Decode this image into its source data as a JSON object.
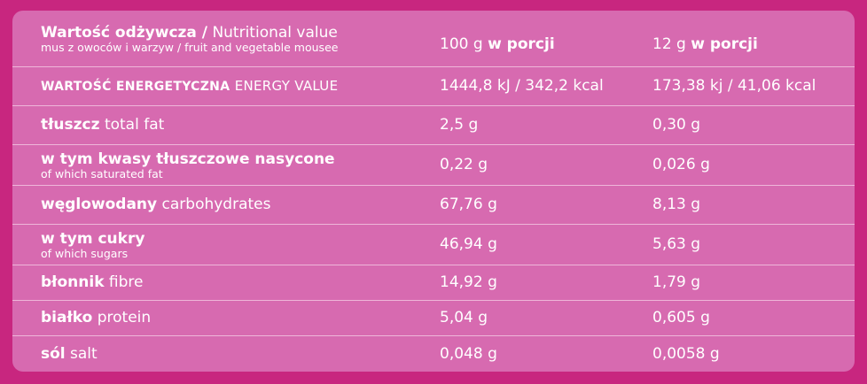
{
  "header": {
    "title_bold": "Wartość odżywcza /",
    "title_regular": "Nutritional value",
    "subtitle": "mus z owoców i warzyw / fruit and vegetable mousee",
    "col1_amount": "100 g",
    "col1_label": "w porcji",
    "col2_amount": "12 g",
    "col2_label": "w porcji"
  },
  "rows": [
    {
      "pl": "WARTOŚĆ ENERGETYCZNA",
      "en": "ENERGY VALUE",
      "v100": "1444,8 kJ / 342,2 kcal",
      "v12": "173,38 kj / 41,06 kcal"
    },
    {
      "pl": "tłuszcz",
      "en": "total fat",
      "v100": "2,5 g",
      "v12": "0,30 g"
    },
    {
      "pl": "w tym kwasy tłuszczowe nasycone",
      "en": "of which saturated fat",
      "v100": "0,22 g",
      "v12": "0,026 g"
    },
    {
      "pl": "węglowodany",
      "en": "carbohydrates",
      "v100": "67,76 g",
      "v12": "8,13 g"
    },
    {
      "pl": "w tym cukry",
      "en": "of which sugars",
      "v100": "46,94 g",
      "v12": "5,63 g"
    },
    {
      "pl": "błonnik",
      "en": "fibre",
      "v100": "14,92 g",
      "v12": "1,79 g"
    },
    {
      "pl": "białko",
      "en": "protein",
      "v100": "5,04 g",
      "v12": "0,605 g"
    },
    {
      "pl": "sól",
      "en": "salt",
      "v100": "0,048 g",
      "v12": "0,0058 g"
    }
  ]
}
